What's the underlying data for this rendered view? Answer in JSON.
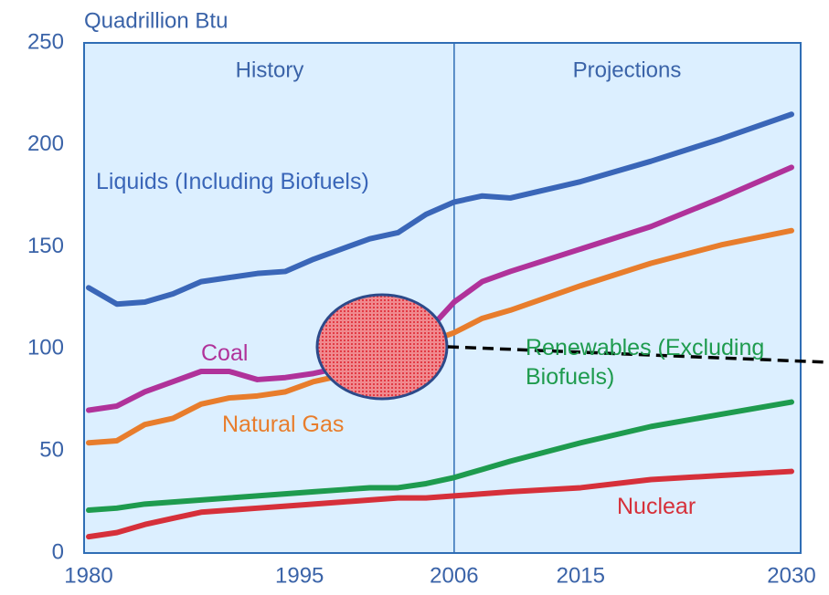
{
  "chart_data": {
    "type": "line",
    "y_label": "Quadrillion Btu",
    "annotations": [
      "History",
      "Projections"
    ],
    "x": [
      1980,
      1982,
      1984,
      1986,
      1988,
      1990,
      1992,
      1994,
      1996,
      1998,
      2000,
      2002,
      2004,
      2006,
      2008,
      2010,
      2015,
      2020,
      2025,
      2030
    ],
    "series": [
      {
        "name": "Liquids (Including Biofuels)",
        "color": "#3a66b8",
        "values": [
          130,
          122,
          123,
          127,
          133,
          135,
          137,
          138,
          144,
          149,
          154,
          157,
          166,
          172,
          175,
          174,
          182,
          192,
          203,
          215
        ]
      },
      {
        "name": "Coal",
        "color": "#b0329a",
        "values": [
          70,
          72,
          79,
          84,
          89,
          89,
          85,
          86,
          88,
          91,
          91,
          95,
          108,
          123,
          133,
          138,
          149,
          160,
          174,
          189
        ]
      },
      {
        "name": "Natural Gas",
        "color": "#e87d2c",
        "values": [
          54,
          55,
          63,
          66,
          73,
          76,
          77,
          79,
          84,
          87,
          93,
          97,
          103,
          108,
          115,
          119,
          131,
          142,
          151,
          158
        ]
      },
      {
        "name": "Renewables (Excluding Biofuels)",
        "color": "#1e9b4e",
        "values": [
          21,
          22,
          24,
          25,
          26,
          27,
          28,
          29,
          30,
          31,
          32,
          32,
          34,
          37,
          41,
          45,
          54,
          62,
          68,
          74
        ]
      },
      {
        "name": "Nuclear",
        "color": "#d6303a",
        "values": [
          8,
          10,
          14,
          17,
          20,
          21,
          22,
          23,
          24,
          25,
          26,
          27,
          27,
          28,
          29,
          30,
          32,
          36,
          38,
          40
        ]
      }
    ],
    "xlim": [
      1980,
      2030
    ],
    "xticks": [
      1980,
      1995,
      2006,
      2015,
      2030
    ],
    "ylim": [
      0,
      250
    ],
    "yticks": [
      0,
      50,
      100,
      150,
      200,
      250
    ]
  }
}
